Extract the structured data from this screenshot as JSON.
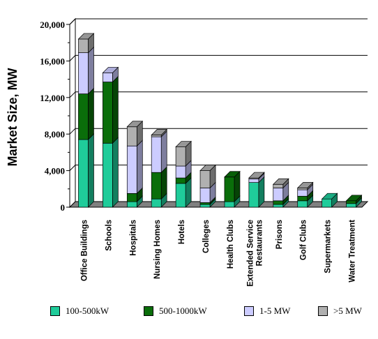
{
  "chart_data": {
    "type": "bar",
    "stacked": true,
    "ylabel": "Market Size, MW",
    "ylim": [
      0,
      20000
    ],
    "yticks": [
      "0",
      "4,000",
      "8,000",
      "12,000",
      "16,000",
      "20,000"
    ],
    "ytick_values": [
      0,
      4000,
      8000,
      12000,
      16000,
      20000
    ],
    "grid": "horizontal",
    "legend_position": "bottom",
    "categories": [
      [
        "Office Buildings"
      ],
      [
        "Schools"
      ],
      [
        "Hospitals"
      ],
      [
        "Nursing Homes"
      ],
      [
        "Hotels"
      ],
      [
        "Colleges"
      ],
      [
        "Health Clubs"
      ],
      [
        "Extended Service",
        "Restaurants"
      ],
      [
        "Prisons"
      ],
      [
        "Golf Clubs"
      ],
      [
        "Supermarkets"
      ],
      [
        "Water Treatment"
      ]
    ],
    "series": [
      {
        "name": "100-500kW",
        "color": "#1fcc9a",
        "values": [
          7400,
          7000,
          600,
          900,
          2600,
          300,
          600,
          2700,
          300,
          700,
          900,
          400
        ]
      },
      {
        "name": "500-1000kW",
        "color": "#0a6e0a",
        "values": [
          5000,
          6700,
          900,
          2900,
          600,
          200,
          2700,
          0,
          400,
          500,
          0,
          300
        ]
      },
      {
        "name": "1-5 MW",
        "color": "#ccccff",
        "values": [
          4500,
          1000,
          5200,
          3900,
          1300,
          1600,
          0,
          400,
          1400,
          700,
          0,
          0
        ]
      },
      {
        "name": ">5 MW",
        "color": "#b0b0b0",
        "values": [
          1500,
          0,
          2100,
          200,
          2100,
          1900,
          0,
          100,
          400,
          200,
          0,
          0
        ]
      }
    ]
  }
}
